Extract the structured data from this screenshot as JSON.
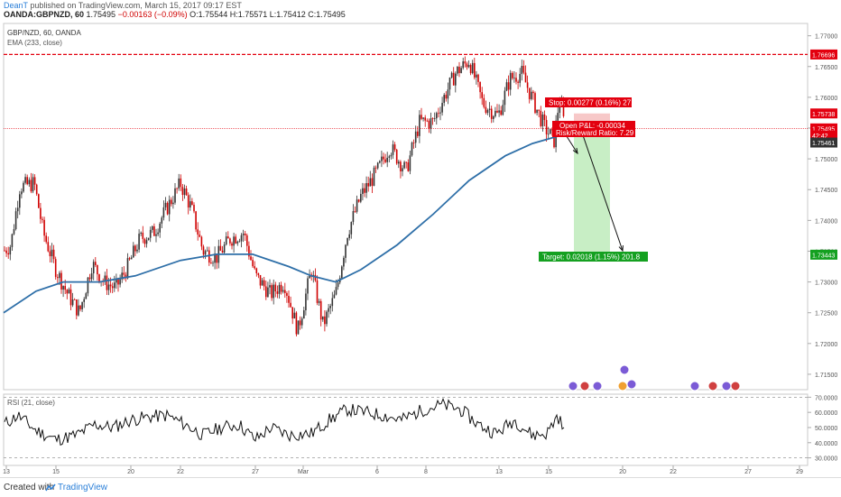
{
  "header": {
    "author": "DeanT",
    "published_text": "published on TradingView.com, March 15, 2017 09:17 EST",
    "symbol_line_prefix": "OANDA:GBPNZD, 60",
    "last": "1.75495",
    "change": "−0.00163 (−0.09%)",
    "ohlc": "O:1.75544 H:1.75571 L:1.75412 C:1.75495"
  },
  "chart_title": "GBP/NZD, 60, OANDA",
  "ema_label": "EMA (233, close)",
  "rsi_label": "RSI (21, close)",
  "price_axis": {
    "ticks": [
      "1.77000",
      "1.76500",
      "1.76000",
      "1.75500",
      "1.75000",
      "1.74500",
      "1.74000",
      "1.73500",
      "1.73000",
      "1.72500",
      "1.72000",
      "1.71500"
    ],
    "tags": [
      {
        "text": "1.76696",
        "value": 1.76696,
        "bg": "#e3000f"
      },
      {
        "text": "1.75738",
        "value": 1.75738,
        "bg": "#e3000f"
      },
      {
        "text": "1.75495",
        "value": 1.75495,
        "bg": "#e3000f"
      },
      {
        "text": "42:42",
        "value": 1.7538,
        "bg": "#e3000f"
      },
      {
        "text": "1.75461",
        "value": 1.75265,
        "bg": "#333333"
      },
      {
        "text": "1.73443",
        "value": 1.73443,
        "bg": "#14a020"
      }
    ]
  },
  "rsi_axis": {
    "ticks": [
      "70.0000",
      "60.0000",
      "50.0000",
      "40.0000",
      "30.0000"
    ]
  },
  "time_axis": {
    "labels": [
      "13",
      "15",
      "20",
      "22",
      "27",
      "Mar",
      "6",
      "8",
      "13",
      "15",
      "20",
      "22",
      "27",
      "29"
    ]
  },
  "position": {
    "stop_label": "Stop: 0.00277 (0.16%) 27.7",
    "pnl_label": "Open P&L: -0.00034",
    "rr_label": "Risk/Reward Ratio: 7.29",
    "target_label": "Target: 0.02018 (1.15%) 201.8",
    "entry": 1.75461,
    "stop": 1.75738,
    "target": 1.73443
  },
  "footer": {
    "created": "Created with",
    "brand": "TradingView"
  },
  "colors": {
    "up_candle": "#333333",
    "down_candle": "#d00000",
    "ema": "#2e6fa8",
    "stop_zone": "#e3000f",
    "target_zone": "#c8eec5",
    "target_tag": "#14a020"
  },
  "chart_data": {
    "type": "line",
    "title": "GBP/NZD, 60, OANDA",
    "series": [
      {
        "name": "GBP/NZD (close)",
        "x": [
          "13",
          "15",
          "20",
          "22",
          "27",
          "Mar",
          "6",
          "8",
          "13",
          "15"
        ],
        "values": [
          1.735,
          1.7285,
          1.732,
          1.746,
          1.726,
          1.724,
          1.744,
          1.756,
          1.762,
          1.755
        ]
      },
      {
        "name": "EMA (233, close)",
        "x": [
          "13",
          "15",
          "20",
          "22",
          "27",
          "Mar",
          "6",
          "8",
          "13",
          "15"
        ],
        "values": [
          1.725,
          1.7295,
          1.7305,
          1.734,
          1.734,
          1.73,
          1.737,
          1.743,
          1.751,
          1.754
        ]
      },
      {
        "name": "RSI (21, close)",
        "x": [
          "13",
          "15",
          "20",
          "22",
          "27",
          "Mar",
          "6",
          "8",
          "13",
          "15"
        ],
        "values": [
          55,
          42,
          52,
          58,
          40,
          44,
          62,
          66,
          47,
          46
        ]
      }
    ],
    "ylim": [
      1.7125,
      1.772
    ],
    "rsi_ylim": [
      25,
      72
    ]
  }
}
